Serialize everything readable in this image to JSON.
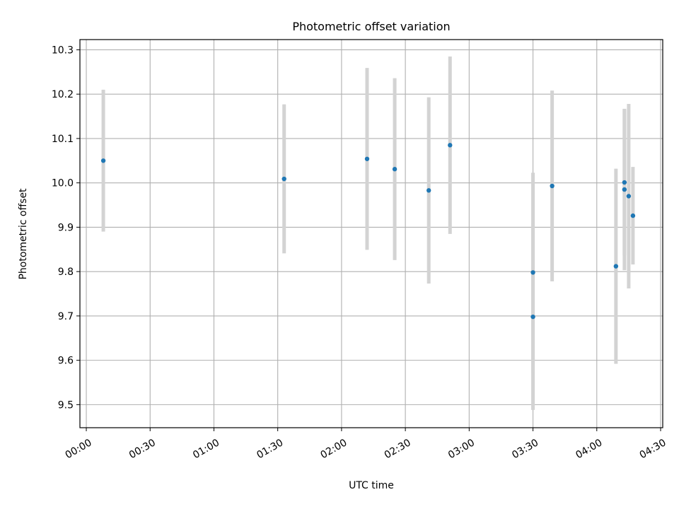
{
  "chart_data": {
    "type": "scatter",
    "title": "Photometric offset variation",
    "xlabel": "UTC time",
    "ylabel": "Photometric offset",
    "x_ticks": [
      "00:00",
      "00:30",
      "01:00",
      "01:30",
      "02:00",
      "02:30",
      "03:00",
      "03:30",
      "04:00",
      "04:30"
    ],
    "y_ticks": [
      "9.5",
      "9.6",
      "9.7",
      "9.8",
      "9.9",
      "10.0",
      "10.1",
      "10.2",
      "10.3"
    ],
    "xlim": [
      "23:57",
      "04:31"
    ],
    "ylim": [
      9.448,
      10.323
    ],
    "grid": true,
    "series": [
      {
        "marker_color": "#1f77b4",
        "errorbar_color": "#d3d3d3",
        "points": [
          {
            "x": "00:08",
            "y": 10.05,
            "yerr": 0.16
          },
          {
            "x": "01:33",
            "y": 10.009,
            "yerr": 0.168
          },
          {
            "x": "02:12",
            "y": 10.054,
            "yerr": 0.205
          },
          {
            "x": "02:25",
            "y": 10.031,
            "yerr": 0.205
          },
          {
            "x": "02:41",
            "y": 9.983,
            "yerr": 0.21
          },
          {
            "x": "02:51",
            "y": 10.085,
            "yerr": 0.2
          },
          {
            "x": "03:30",
            "y": 9.698,
            "yerr": 0.21
          },
          {
            "x": "03:30",
            "y": 9.798,
            "yerr": 0.225
          },
          {
            "x": "03:39",
            "y": 9.993,
            "yerr": 0.215
          },
          {
            "x": "04:09",
            "y": 9.812,
            "yerr": 0.22
          },
          {
            "x": "04:13",
            "y": 10.001,
            "yerr": 0.165
          },
          {
            "x": "04:13",
            "y": 9.985,
            "yerr": 0.182
          },
          {
            "x": "04:15",
            "y": 9.97,
            "yerr": 0.208
          },
          {
            "x": "04:17",
            "y": 9.926,
            "yerr": 0.11
          }
        ]
      }
    ]
  }
}
